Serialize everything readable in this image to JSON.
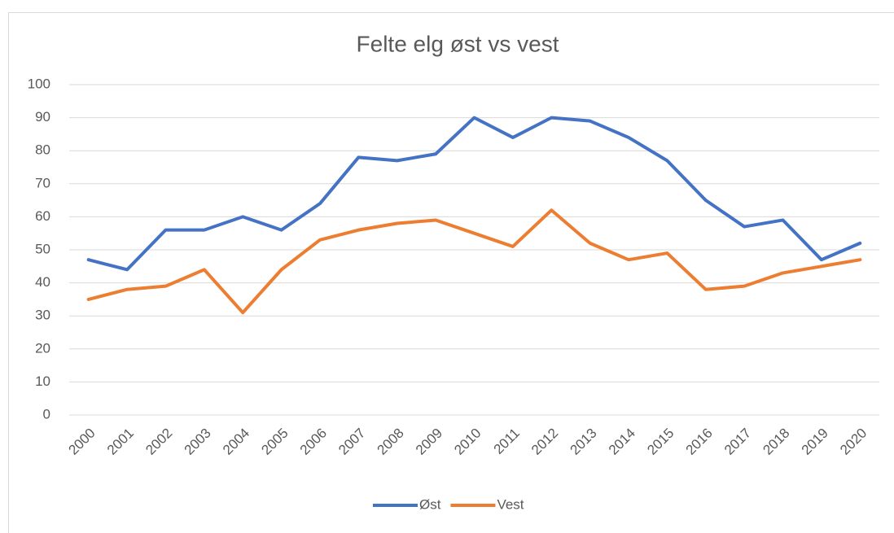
{
  "chart_data": {
    "type": "line",
    "title": "Felte elg øst vs vest",
    "categories": [
      "2000",
      "2001",
      "2002",
      "2003",
      "2004",
      "2005",
      "2006",
      "2007",
      "2008",
      "2009",
      "2010",
      "2011",
      "2012",
      "2013",
      "2014",
      "2015",
      "2016",
      "2017",
      "2018",
      "2019",
      "2020"
    ],
    "series": [
      {
        "name": "Øst",
        "color": "#4472c4",
        "values": [
          47,
          44,
          56,
          56,
          60,
          56,
          64,
          78,
          77,
          79,
          90,
          84,
          90,
          89,
          84,
          77,
          65,
          57,
          59,
          47,
          52
        ]
      },
      {
        "name": "Vest",
        "color": "#ed7d31",
        "values": [
          35,
          38,
          39,
          44,
          31,
          44,
          53,
          56,
          58,
          59,
          55,
          51,
          62,
          52,
          47,
          49,
          38,
          39,
          43,
          45,
          47
        ]
      }
    ],
    "ylim": [
      0,
      100
    ],
    "yticks": [
      0,
      10,
      20,
      30,
      40,
      50,
      60,
      70,
      80,
      90,
      100
    ],
    "grid": true,
    "legend": "bottom"
  }
}
